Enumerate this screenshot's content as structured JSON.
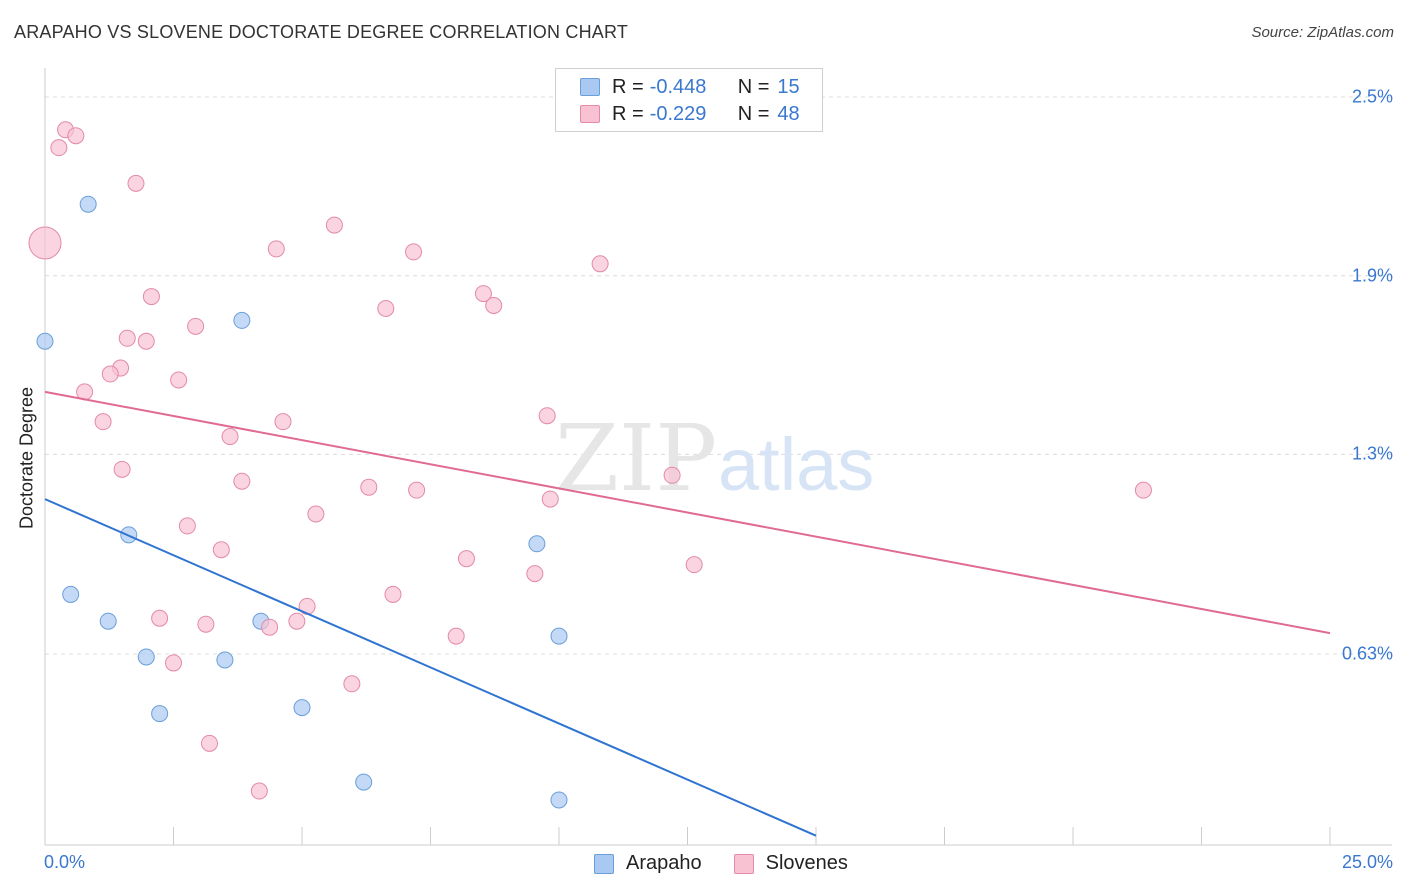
{
  "title": "ARAPAHO VS SLOVENE DOCTORATE DEGREE CORRELATION CHART",
  "source": "Source: ZipAtlas.com",
  "watermark": {
    "zip": "ZIP",
    "atlas": "atlas"
  },
  "stats": [
    {
      "r_label": "R =",
      "r_value": "-0.448",
      "n_label": "N =",
      "n_value": "15",
      "color": "#a9c9f2",
      "border": "#6a9fd8"
    },
    {
      "r_label": "R =",
      "r_value": "-0.229",
      "n_label": "N =",
      "n_value": "48",
      "color": "#f8c2d3",
      "border": "#e38aa8"
    }
  ],
  "legend": [
    {
      "label": "Arapaho",
      "color": "#a9c9f2",
      "border": "#6a9fd8"
    },
    {
      "label": "Slovenes",
      "color": "#f8c2d3",
      "border": "#e38aa8"
    }
  ],
  "chart_data": {
    "type": "scatter",
    "xlabel": "",
    "ylabel": "Doctorate Degree",
    "xlim": [
      0,
      25
    ],
    "ylim": [
      0,
      2.5
    ],
    "x_tick_labels": [
      "0.0%",
      "25.0%"
    ],
    "y_ticks": [
      {
        "value": 2.5,
        "label": "2.5%"
      },
      {
        "value": 1.9,
        "label": "1.9%"
      },
      {
        "value": 1.3,
        "label": "1.3%"
      },
      {
        "value": 0.63,
        "label": "0.63%"
      }
    ],
    "series": [
      {
        "name": "Arapaho",
        "color": "#a9c9f2",
        "stroke": "#6a9fd8",
        "line_color": "#2f74d0",
        "trend": {
          "x": [
            0,
            15
          ],
          "y": [
            1.15,
            0.02
          ]
        },
        "points": [
          [
            0.84,
            2.14
          ],
          [
            0.0,
            1.68
          ],
          [
            3.83,
            1.75
          ],
          [
            1.63,
            1.03
          ],
          [
            9.57,
            1.0
          ],
          [
            0.5,
            0.83
          ],
          [
            1.23,
            0.74
          ],
          [
            4.2,
            0.74
          ],
          [
            10.0,
            0.69
          ],
          [
            1.97,
            0.62
          ],
          [
            3.5,
            0.61
          ],
          [
            5.0,
            0.45
          ],
          [
            2.23,
            0.43
          ],
          [
            6.2,
            0.2
          ],
          [
            10.0,
            0.14
          ]
        ]
      },
      {
        "name": "Slovenes",
        "color": "#f8c2d3",
        "stroke": "#e38aa8",
        "line_color": "#e06a93",
        "trend": {
          "x": [
            0,
            25
          ],
          "y": [
            1.51,
            0.7
          ]
        },
        "points": [
          [
            0.4,
            2.39
          ],
          [
            0.6,
            2.37
          ],
          [
            0.27,
            2.33
          ],
          [
            1.77,
            2.21
          ],
          [
            5.63,
            2.07
          ],
          [
            0.0,
            2.01
          ],
          [
            4.5,
            1.99
          ],
          [
            7.17,
            1.98
          ],
          [
            10.8,
            1.94
          ],
          [
            2.07,
            1.83
          ],
          [
            8.53,
            1.84
          ],
          [
            6.63,
            1.79
          ],
          [
            8.73,
            1.8
          ],
          [
            2.93,
            1.73
          ],
          [
            1.6,
            1.69
          ],
          [
            1.97,
            1.68
          ],
          [
            1.47,
            1.59
          ],
          [
            1.27,
            1.57
          ],
          [
            2.6,
            1.55
          ],
          [
            0.77,
            1.51
          ],
          [
            1.13,
            1.41
          ],
          [
            4.63,
            1.41
          ],
          [
            9.77,
            1.43
          ],
          [
            3.6,
            1.36
          ],
          [
            1.5,
            1.25
          ],
          [
            3.83,
            1.21
          ],
          [
            6.3,
            1.19
          ],
          [
            7.23,
            1.18
          ],
          [
            12.2,
            1.23
          ],
          [
            21.37,
            1.18
          ],
          [
            9.83,
            1.15
          ],
          [
            5.27,
            1.1
          ],
          [
            2.77,
            1.06
          ],
          [
            3.43,
            0.98
          ],
          [
            8.2,
            0.95
          ],
          [
            12.63,
            0.93
          ],
          [
            9.53,
            0.9
          ],
          [
            6.77,
            0.83
          ],
          [
            5.1,
            0.79
          ],
          [
            2.23,
            0.75
          ],
          [
            3.13,
            0.73
          ],
          [
            4.37,
            0.72
          ],
          [
            4.9,
            0.74
          ],
          [
            8.0,
            0.69
          ],
          [
            2.5,
            0.6
          ],
          [
            5.97,
            0.53
          ],
          [
            3.2,
            0.33
          ],
          [
            4.17,
            0.17
          ]
        ]
      }
    ]
  }
}
